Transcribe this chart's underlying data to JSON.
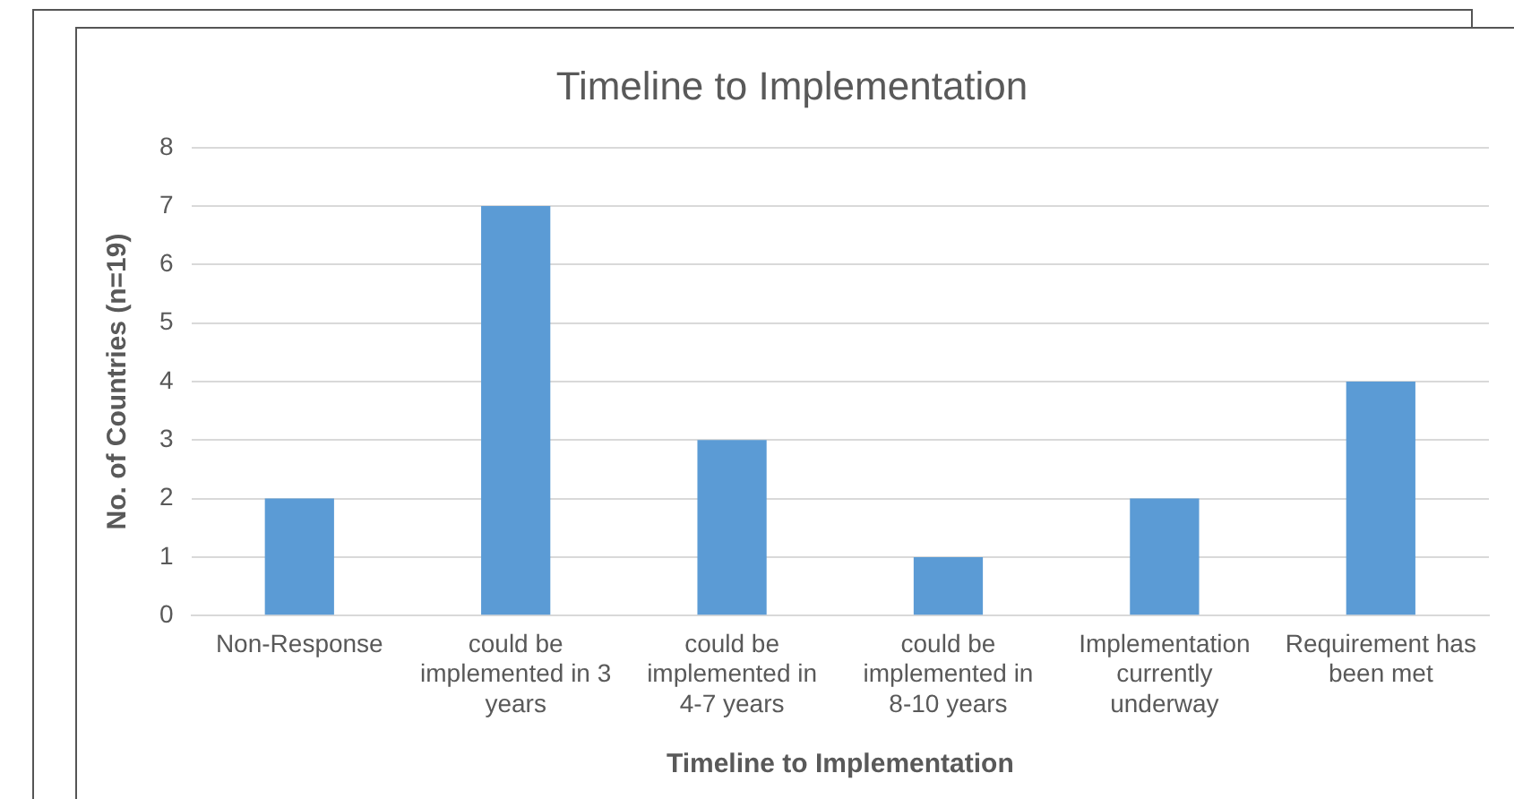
{
  "chart_data": {
    "type": "bar",
    "title": "Timeline to Implementation",
    "xlabel": "Timeline to Implementation",
    "ylabel": "No. of Countries (n=19)",
    "categories": [
      "Non-Response",
      "could be implemented in 3 years",
      "could be implemented in 4-7 years",
      "could be implemented in 8-10 years",
      "Implementation currently underway",
      "Requirement has been met"
    ],
    "values": [
      2,
      7,
      3,
      1,
      2,
      4
    ],
    "color": "#5b9bd5",
    "ylim": [
      0,
      8
    ],
    "yticks": [
      0,
      1,
      2,
      3,
      4,
      5,
      6,
      7,
      8
    ],
    "grid": "y",
    "legend": false
  }
}
